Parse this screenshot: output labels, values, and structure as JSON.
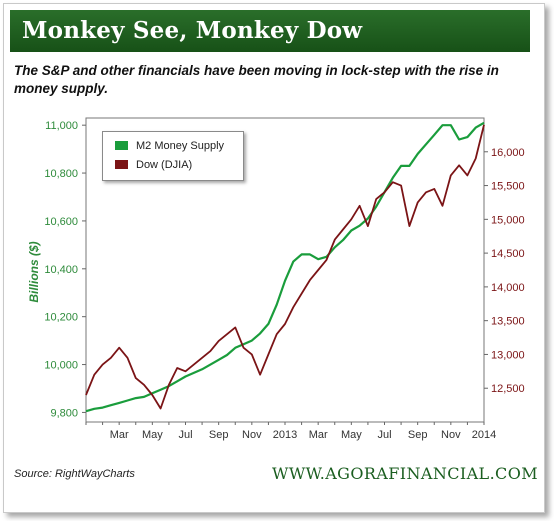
{
  "title": "Monkey See, Monkey Dow",
  "subtitle": "The S&P and other financials have been moving in lock-step with the rise in money supply.",
  "source": "Source: RightWayCharts",
  "brand": "WWW.AGORAFINANCIAL.COM",
  "colors": {
    "banner": "#1f5f1f",
    "m2": "#1a9d3c",
    "dow": "#7b1416",
    "left_axis_text": "#2e8b3b"
  },
  "chart_data": {
    "type": "line",
    "ylabel": "Billions ($)",
    "x_tick_labels": [
      "Mar",
      "May",
      "Jul",
      "Sep",
      "Nov",
      "2013",
      "Mar",
      "May",
      "Jul",
      "Sep",
      "Nov",
      "2014"
    ],
    "x_range": [
      0,
      24
    ],
    "left_axis": {
      "label": "Billions ($)",
      "range": [
        9760,
        11030
      ],
      "ticks": [
        "9,800",
        "10,000",
        "10,200",
        "10,400",
        "10,600",
        "10,800",
        "11,000"
      ]
    },
    "right_axis": {
      "range": [
        12000,
        16500
      ],
      "ticks": [
        "12,500",
        "13,000",
        "13,500",
        "14,000",
        "14,500",
        "15,000",
        "15,500",
        "16,000"
      ]
    },
    "legend": {
      "placement": "top-left",
      "entries": [
        "M2 Money Supply",
        "Dow (DJIA)"
      ]
    },
    "grid": false,
    "series": [
      {
        "name": "M2 Money Supply",
        "axis": "left",
        "x": [
          0,
          0.5,
          1,
          1.5,
          2,
          2.5,
          3,
          3.5,
          4,
          4.5,
          5,
          5.5,
          6,
          6.5,
          7,
          7.5,
          8,
          8.5,
          9,
          9.5,
          10,
          10.5,
          11,
          11.5,
          12,
          12.5,
          13,
          13.5,
          14,
          14.5,
          15,
          15.5,
          16,
          16.5,
          17,
          17.5,
          18,
          18.5,
          19,
          19.5,
          20,
          20.5,
          21,
          21.5,
          22,
          22.5,
          23,
          23.5,
          24
        ],
        "values": [
          9805,
          9815,
          9820,
          9830,
          9840,
          9850,
          9860,
          9865,
          9880,
          9895,
          9910,
          9930,
          9950,
          9965,
          9980,
          10000,
          10020,
          10040,
          10070,
          10085,
          10100,
          10130,
          10170,
          10250,
          10350,
          10430,
          10460,
          10460,
          10440,
          10450,
          10490,
          10520,
          10560,
          10580,
          10610,
          10660,
          10720,
          10780,
          10830,
          10830,
          10880,
          10920,
          10960,
          11000,
          11000,
          10940,
          10950,
          10990,
          11010
        ]
      },
      {
        "name": "Dow (DJIA)",
        "axis": "right",
        "x": [
          0,
          0.5,
          1,
          1.5,
          2,
          2.5,
          3,
          3.5,
          4,
          4.5,
          5,
          5.5,
          6,
          6.5,
          7,
          7.5,
          8,
          8.5,
          9,
          9.5,
          10,
          10.5,
          11,
          11.5,
          12,
          12.5,
          13,
          13.5,
          14,
          14.5,
          15,
          15.5,
          16,
          16.5,
          17,
          17.5,
          18,
          18.5,
          19,
          19.5,
          20,
          20.5,
          21,
          21.5,
          22,
          22.5,
          23,
          23.5,
          24
        ],
        "values": [
          12400,
          12700,
          12850,
          12950,
          13100,
          12950,
          12650,
          12550,
          12400,
          12200,
          12550,
          12800,
          12750,
          12850,
          12950,
          13050,
          13200,
          13300,
          13400,
          13100,
          13000,
          12700,
          13000,
          13300,
          13450,
          13700,
          13900,
          14100,
          14250,
          14400,
          14700,
          14850,
          15000,
          15200,
          14900,
          15300,
          15400,
          15550,
          15500,
          14900,
          15250,
          15400,
          15450,
          15200,
          15650,
          15800,
          15650,
          15900,
          16400
        ]
      }
    ]
  }
}
